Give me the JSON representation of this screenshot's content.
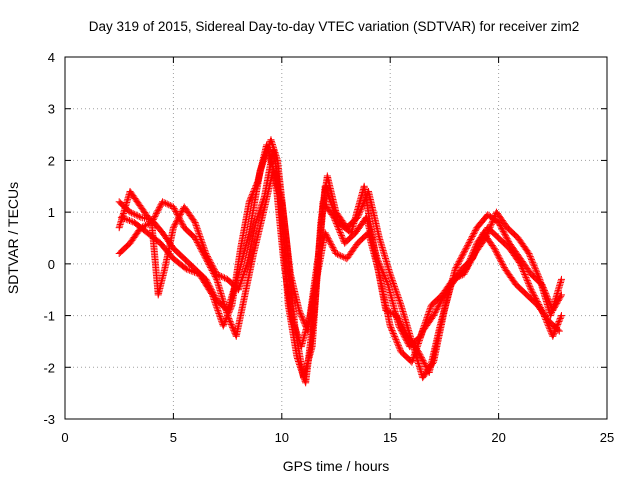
{
  "chart_data": {
    "type": "scatter",
    "title": "Day 319 of 2015, Sidereal Day-to-day VTEC variation (SDTVAR) for receiver zim2",
    "xlabel": "GPS time / hours",
    "ylabel": "SDTVAR / TECUs",
    "xlim": [
      0,
      25
    ],
    "ylim": [
      -3,
      4
    ],
    "x_ticks": [
      0,
      5,
      10,
      15,
      20,
      25
    ],
    "y_ticks": [
      -3,
      -2,
      -1,
      0,
      1,
      2,
      3,
      4
    ],
    "grid": true,
    "marker": "plus",
    "color": "#ff0000",
    "series": [
      {
        "name": "track-a",
        "points": [
          [
            2.5,
            1.2
          ],
          [
            3.0,
            1.0
          ],
          [
            3.5,
            0.9
          ],
          [
            4.0,
            0.85
          ],
          [
            4.5,
            0.6
          ],
          [
            5.0,
            0.3
          ],
          [
            5.5,
            0.1
          ],
          [
            6.0,
            -0.1
          ],
          [
            6.5,
            -0.3
          ],
          [
            7.0,
            -0.7
          ],
          [
            7.5,
            -0.9
          ],
          [
            8.0,
            -0.2
          ],
          [
            8.5,
            0.6
          ],
          [
            9.0,
            1.8
          ],
          [
            9.5,
            2.4
          ],
          [
            9.8,
            2.0
          ],
          [
            10.2,
            0.5
          ],
          [
            10.6,
            -1.2
          ],
          [
            11.0,
            -2.2
          ],
          [
            11.4,
            -1.6
          ],
          [
            11.8,
            0.8
          ],
          [
            12.1,
            1.7
          ],
          [
            12.5,
            1.0
          ],
          [
            13.0,
            0.7
          ],
          [
            13.5,
            0.9
          ],
          [
            14.0,
            1.4
          ],
          [
            14.5,
            0.5
          ],
          [
            15.0,
            -0.2
          ],
          [
            15.5,
            -0.8
          ],
          [
            16.0,
            -1.5
          ],
          [
            16.5,
            -2.2
          ],
          [
            17.0,
            -1.9
          ],
          [
            17.5,
            -0.9
          ],
          [
            18.0,
            -0.1
          ],
          [
            18.5,
            0.3
          ],
          [
            19.0,
            0.7
          ],
          [
            19.5,
            0.95
          ],
          [
            20.0,
            0.8
          ],
          [
            20.5,
            0.4
          ],
          [
            21.0,
            0.1
          ],
          [
            21.5,
            -0.2
          ],
          [
            22.0,
            -0.4
          ],
          [
            22.5,
            -0.9
          ],
          [
            22.9,
            -0.6
          ]
        ]
      },
      {
        "name": "track-b",
        "points": [
          [
            2.5,
            0.2
          ],
          [
            3.0,
            0.4
          ],
          [
            3.5,
            0.7
          ],
          [
            4.0,
            0.8
          ],
          [
            4.5,
            1.2
          ],
          [
            5.0,
            1.1
          ],
          [
            5.5,
            0.7
          ],
          [
            6.0,
            0.5
          ],
          [
            6.5,
            0.1
          ],
          [
            7.0,
            -0.3
          ],
          [
            7.5,
            -1.0
          ],
          [
            7.9,
            -1.4
          ],
          [
            8.3,
            -0.6
          ],
          [
            8.7,
            0.2
          ],
          [
            9.1,
            0.9
          ],
          [
            9.6,
            1.8
          ],
          [
            10.0,
            1.2
          ],
          [
            10.4,
            -0.2
          ],
          [
            10.8,
            -0.9
          ],
          [
            11.2,
            -1.3
          ],
          [
            11.6,
            -0.3
          ],
          [
            12.0,
            0.6
          ],
          [
            12.5,
            0.2
          ],
          [
            13.0,
            0.1
          ],
          [
            13.5,
            0.4
          ],
          [
            14.0,
            0.6
          ],
          [
            14.5,
            -0.2
          ],
          [
            15.0,
            -1.2
          ],
          [
            15.5,
            -1.7
          ],
          [
            16.0,
            -1.9
          ],
          [
            16.5,
            -1.3
          ],
          [
            17.0,
            -1.0
          ],
          [
            17.5,
            -0.6
          ],
          [
            18.0,
            -0.3
          ],
          [
            18.5,
            -0.1
          ],
          [
            19.0,
            0.4
          ],
          [
            19.5,
            0.7
          ],
          [
            20.0,
            0.5
          ],
          [
            20.5,
            0.3
          ],
          [
            21.0,
            0.0
          ],
          [
            21.5,
            -0.5
          ],
          [
            22.0,
            -0.9
          ],
          [
            22.5,
            -1.4
          ],
          [
            22.9,
            -1.0
          ]
        ]
      },
      {
        "name": "track-c",
        "points": [
          [
            2.5,
            0.7
          ],
          [
            3.0,
            1.4
          ],
          [
            3.5,
            1.1
          ],
          [
            4.0,
            0.8
          ],
          [
            4.3,
            -0.6
          ],
          [
            4.6,
            -0.1
          ],
          [
            5.0,
            0.7
          ],
          [
            5.5,
            1.1
          ],
          [
            6.0,
            0.8
          ],
          [
            6.5,
            0.2
          ],
          [
            7.0,
            -0.2
          ],
          [
            7.5,
            -0.3
          ],
          [
            8.0,
            -0.5
          ],
          [
            8.4,
            0.0
          ],
          [
            8.8,
            0.8
          ],
          [
            9.2,
            1.3
          ],
          [
            9.6,
            2.2
          ],
          [
            9.9,
            1.5
          ],
          [
            10.3,
            -0.8
          ],
          [
            10.7,
            -1.8
          ],
          [
            11.1,
            -2.3
          ],
          [
            11.5,
            -0.9
          ],
          [
            11.9,
            1.2
          ],
          [
            12.4,
            0.9
          ],
          [
            12.9,
            0.4
          ],
          [
            13.4,
            0.6
          ],
          [
            13.9,
            0.9
          ],
          [
            14.4,
            0.1
          ],
          [
            14.9,
            -0.4
          ],
          [
            15.4,
            -1.2
          ],
          [
            15.9,
            -1.6
          ],
          [
            16.4,
            -1.4
          ],
          [
            16.9,
            -0.8
          ],
          [
            17.4,
            -0.6
          ],
          [
            17.9,
            -0.3
          ],
          [
            18.4,
            -0.2
          ],
          [
            18.9,
            0.2
          ],
          [
            19.4,
            0.5
          ],
          [
            19.9,
            1.0
          ],
          [
            20.4,
            0.7
          ],
          [
            20.9,
            0.5
          ],
          [
            21.4,
            0.2
          ],
          [
            21.9,
            -0.3
          ],
          [
            22.4,
            -1.0
          ],
          [
            22.9,
            -0.3
          ]
        ]
      },
      {
        "name": "track-d",
        "points": [
          [
            2.6,
            0.9
          ],
          [
            3.2,
            0.8
          ],
          [
            3.8,
            0.6
          ],
          [
            4.4,
            0.4
          ],
          [
            5.0,
            0.1
          ],
          [
            5.6,
            -0.1
          ],
          [
            6.2,
            -0.2
          ],
          [
            6.8,
            -0.6
          ],
          [
            7.3,
            -1.2
          ],
          [
            7.7,
            -0.8
          ],
          [
            8.1,
            0.3
          ],
          [
            8.5,
            1.2
          ],
          [
            8.9,
            1.6
          ],
          [
            9.3,
            2.3
          ],
          [
            9.7,
            1.7
          ],
          [
            10.1,
            0.0
          ],
          [
            10.5,
            -1.1
          ],
          [
            10.9,
            -1.6
          ],
          [
            11.3,
            -1.0
          ],
          [
            11.7,
            0.2
          ],
          [
            12.0,
            1.5
          ],
          [
            12.6,
            0.8
          ],
          [
            13.2,
            0.6
          ],
          [
            13.8,
            1.5
          ],
          [
            14.3,
            0.2
          ],
          [
            14.8,
            -0.9
          ],
          [
            15.3,
            -1.0
          ],
          [
            15.8,
            -1.4
          ],
          [
            16.3,
            -1.7
          ],
          [
            16.8,
            -2.1
          ],
          [
            17.3,
            -1.2
          ],
          [
            17.8,
            -0.4
          ],
          [
            18.3,
            -0.1
          ],
          [
            18.8,
            0.1
          ],
          [
            19.3,
            0.6
          ],
          [
            19.8,
            0.3
          ],
          [
            20.3,
            -0.1
          ],
          [
            20.8,
            -0.4
          ],
          [
            21.3,
            -0.6
          ],
          [
            21.8,
            -0.8
          ],
          [
            22.3,
            -1.1
          ],
          [
            22.8,
            -1.3
          ]
        ]
      }
    ]
  }
}
